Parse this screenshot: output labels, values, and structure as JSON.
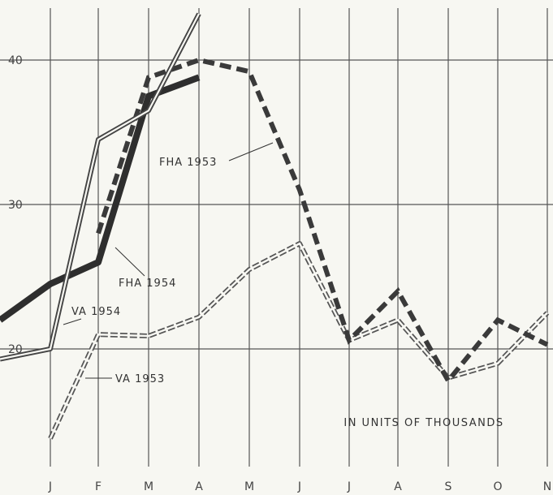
{
  "chart_data": {
    "type": "line",
    "categories": [
      "J",
      "F",
      "M",
      "A",
      "M",
      "J",
      "J",
      "A",
      "S",
      "O",
      "N"
    ],
    "ylim": [
      12,
      43
    ],
    "yticks": [
      "20",
      "30",
      "40"
    ],
    "grid": "on",
    "note": "IN UNITS OF THOUSANDS",
    "series": [
      {
        "name": "FHA 1953",
        "style": "dashed-heavy",
        "color": "#3a3a3a",
        "values": [
          null,
          28,
          38.8,
          40,
          39.2,
          31,
          20.6,
          24,
          17.8,
          22,
          20.3
        ]
      },
      {
        "name": "FHA 1954",
        "style": "solid-heavy",
        "color": "#2e2e2e",
        "values": [
          24.5,
          26,
          37.5,
          38.8,
          null,
          null,
          null,
          null,
          null,
          null,
          null
        ]
      },
      {
        "name": "VA 1953",
        "style": "hollow-dashed",
        "color": "#555555",
        "values": [
          13.8,
          21,
          20.9,
          22.2,
          25.5,
          27.3,
          20.6,
          22,
          18,
          19,
          22.5
        ]
      },
      {
        "name": "VA 1954",
        "style": "hollow",
        "color": "#444444",
        "values": [
          20,
          34.5,
          36.5,
          43.2,
          null,
          null,
          null,
          null,
          null,
          null,
          null
        ]
      }
    ]
  }
}
